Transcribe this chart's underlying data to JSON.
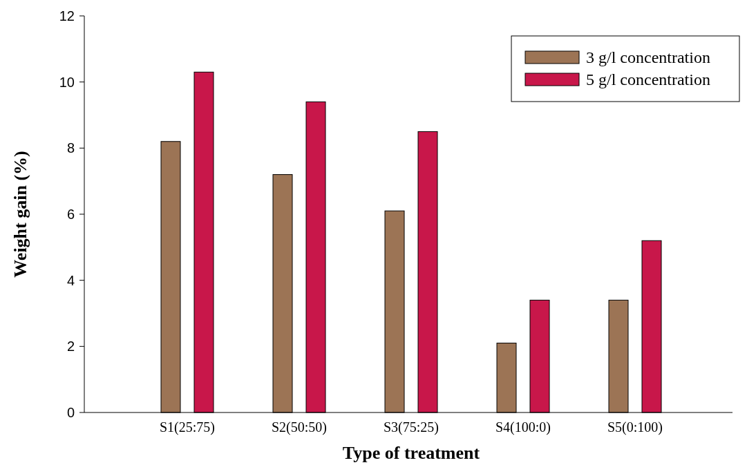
{
  "chart_data": {
    "type": "bar",
    "xlabel": "Type of treatment",
    "ylabel": "Weight gain (%)",
    "categories": [
      "S1(25:75)",
      "S2(50:50)",
      "S3(75:25)",
      "S4(100:0)",
      "S5(0:100)"
    ],
    "series": [
      {
        "name": "3 g/l concentration",
        "color": "#9c7455",
        "values": [
          8.2,
          7.2,
          6.1,
          2.1,
          3.4
        ]
      },
      {
        "name": "5 g/l concentration",
        "color": "#c8174a",
        "values": [
          10.3,
          9.4,
          8.5,
          3.4,
          5.2
        ]
      }
    ],
    "ylim": [
      0,
      12
    ],
    "yticks": [
      0,
      2,
      4,
      6,
      8,
      10,
      12
    ],
    "grid": false,
    "legend": "top right"
  }
}
